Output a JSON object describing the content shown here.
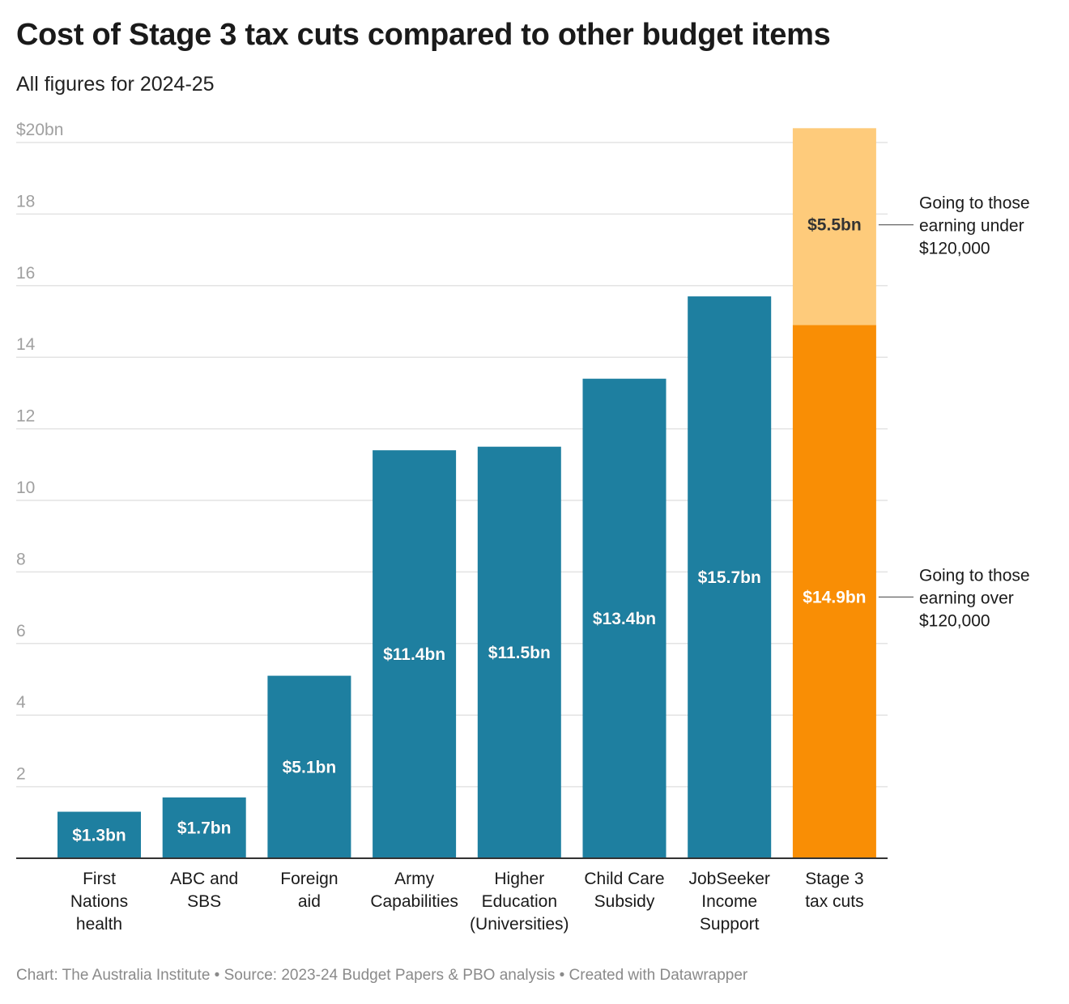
{
  "title": "Cost of Stage 3 tax cuts compared to other budget items",
  "subtitle": "All figures for 2024-25",
  "footer": "Chart: The Australia Institute • Source: 2023-24 Budget Papers & PBO analysis • Created with Datawrapper",
  "colors": {
    "bar": "#1e7fa0",
    "stage3_over": "#f98e05",
    "stage3_under": "#fecb7b",
    "grid": "#e3e3e3",
    "axis": "#333333"
  },
  "chart_data": {
    "type": "bar",
    "ylim": [
      0,
      20
    ],
    "y_ticks": [
      {
        "value": 20,
        "label": "$20bn"
      },
      {
        "value": 18,
        "label": "18"
      },
      {
        "value": 16,
        "label": "16"
      },
      {
        "value": 14,
        "label": "14"
      },
      {
        "value": 12,
        "label": "12"
      },
      {
        "value": 10,
        "label": "10"
      },
      {
        "value": 8,
        "label": "8"
      },
      {
        "value": 6,
        "label": "6"
      },
      {
        "value": 4,
        "label": "4"
      },
      {
        "value": 2,
        "label": "2"
      }
    ],
    "grid": true,
    "categories": [
      [
        "First",
        "Nations",
        "health"
      ],
      [
        "ABC and",
        "SBS"
      ],
      [
        "Foreign",
        "aid"
      ],
      [
        "Army",
        "Capabilities"
      ],
      [
        "Higher",
        "Education",
        "(Universities)"
      ],
      [
        "Child Care",
        "Subsidy"
      ],
      [
        "JobSeeker",
        "Income",
        "Support"
      ],
      [
        "Stage 3",
        "tax cuts"
      ]
    ],
    "values": [
      1.3,
      1.7,
      5.1,
      11.4,
      11.5,
      13.4,
      15.7,
      null
    ],
    "value_labels": [
      "$1.3bn",
      "$1.7bn",
      "$5.1bn",
      "$11.4bn",
      "$11.5bn",
      "$13.4bn",
      "$15.7bn",
      null
    ],
    "stacked_bar": {
      "category_index": 7,
      "segments": [
        {
          "value": 14.9,
          "label": "$14.9bn",
          "annotation": [
            "Going to those",
            "earning over",
            "$120,000"
          ]
        },
        {
          "value": 5.5,
          "label": "$5.5bn",
          "annotation": [
            "Going to those",
            "earning under",
            "$120,000"
          ]
        }
      ]
    }
  }
}
